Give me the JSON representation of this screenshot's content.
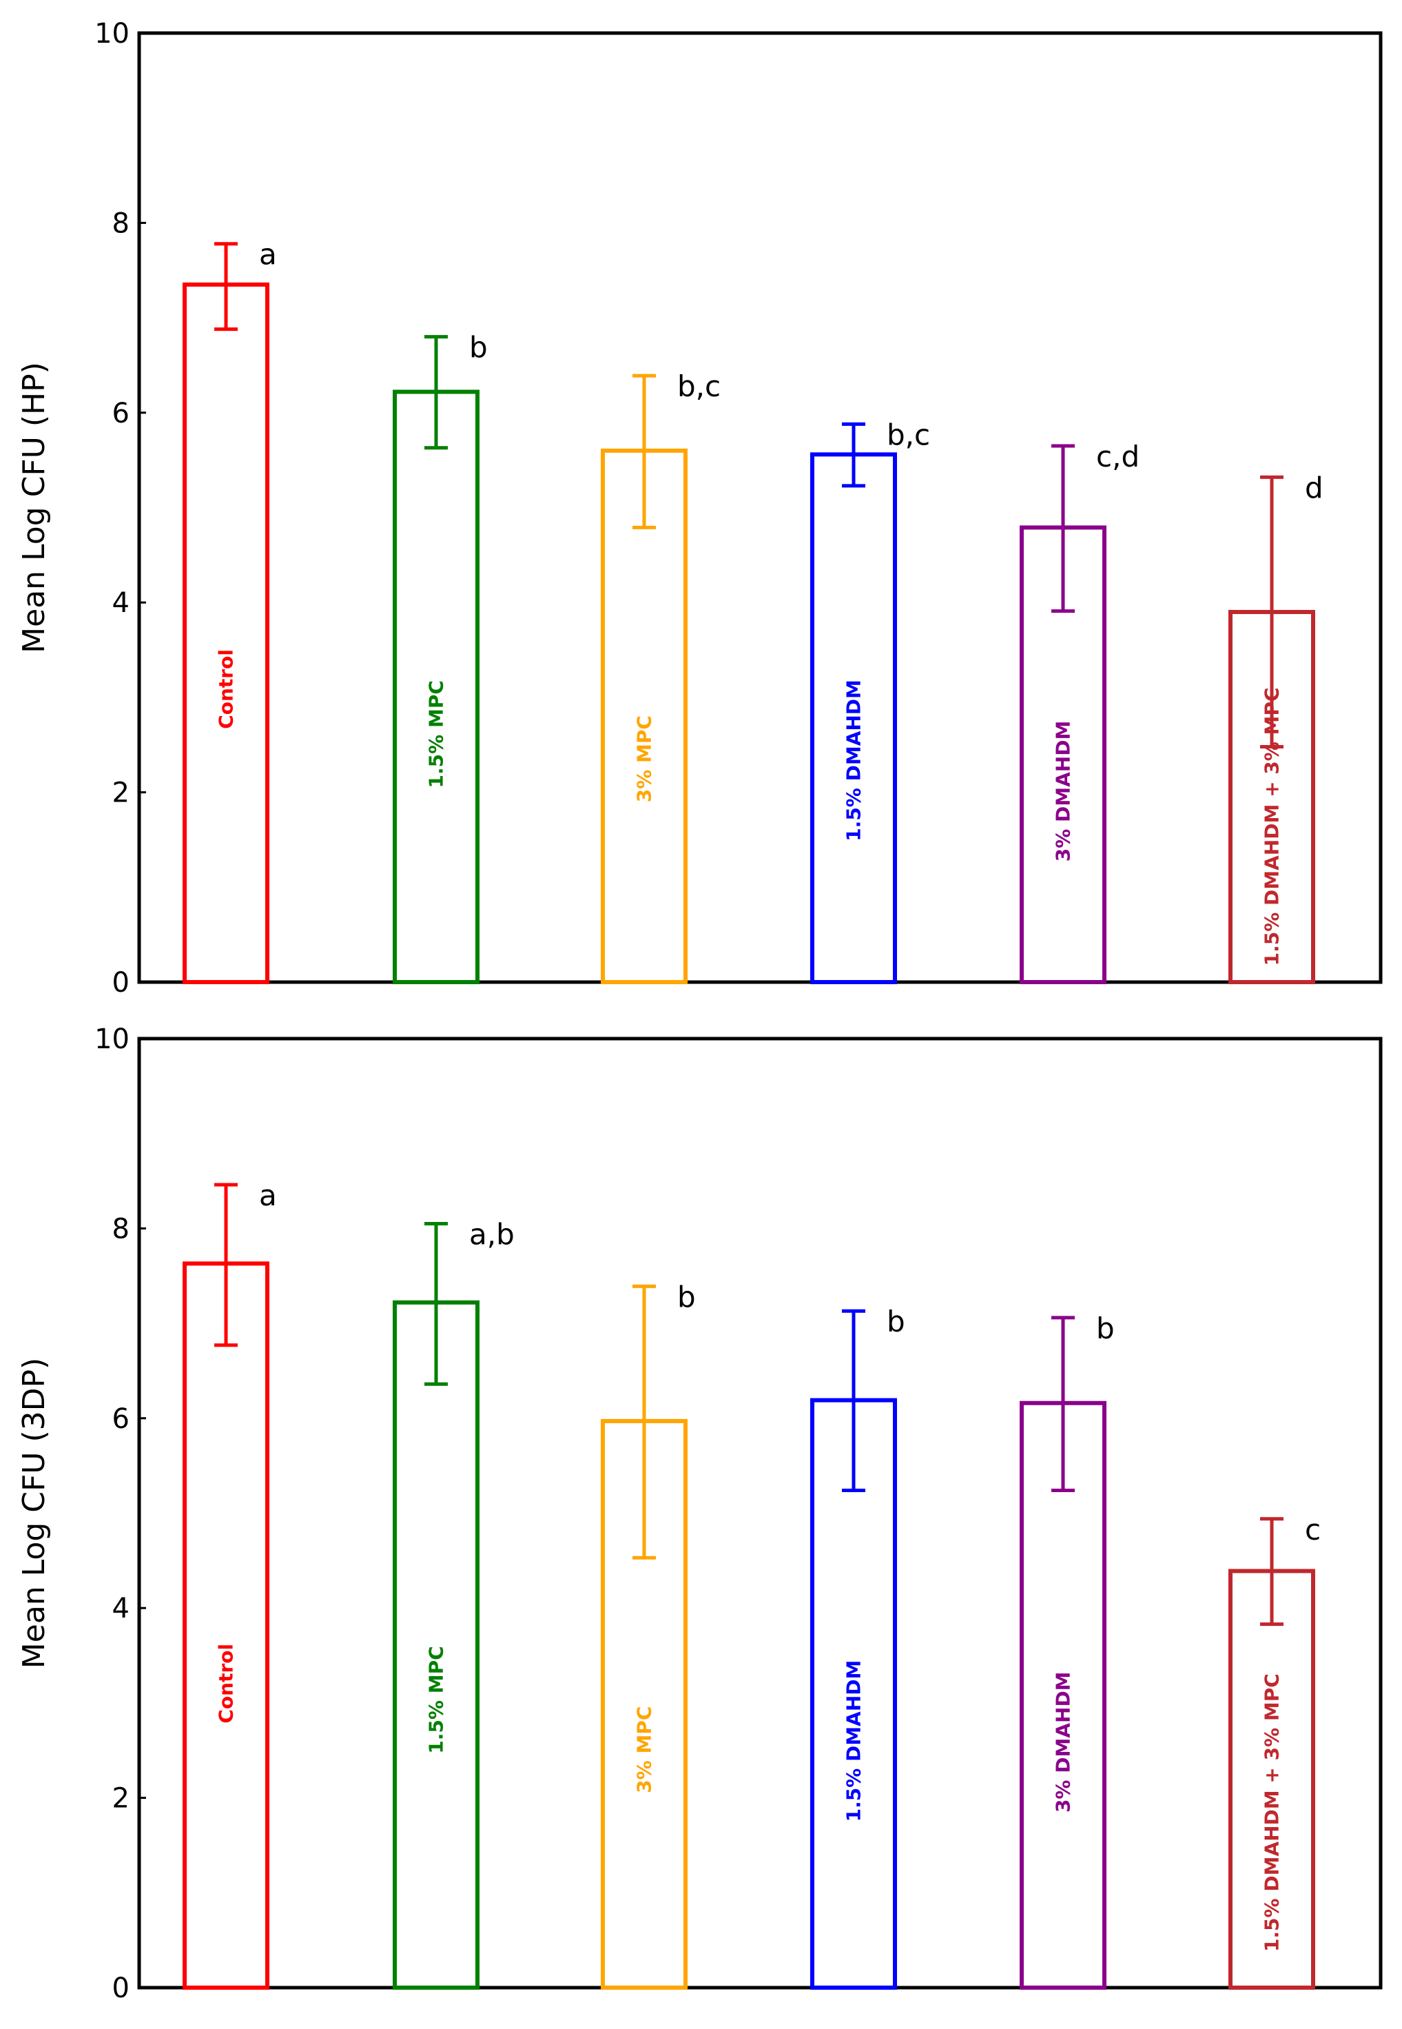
{
  "chart_data": [
    {
      "type": "bar",
      "ylabel": "Mean Log CFU (HP)",
      "xlabel": "",
      "ylim": [
        0,
        10
      ],
      "yticks": [
        "0",
        "2",
        "4",
        "6",
        "8",
        "10"
      ],
      "legend": "none",
      "bars": [
        {
          "label": "Control",
          "value": 7.35,
          "err_low": 6.88,
          "err_high": 7.78,
          "letter": "a",
          "color": "#ff0000"
        },
        {
          "label": "1.5% MPC",
          "value": 6.22,
          "err_low": 5.63,
          "err_high": 6.8,
          "letter": "b",
          "color": "#008000"
        },
        {
          "label": "3% MPC",
          "value": 5.6,
          "err_low": 4.79,
          "err_high": 6.39,
          "letter": "b,c",
          "color": "#ffa500"
        },
        {
          "label": "1.5% DMAHDM",
          "value": 5.56,
          "err_low": 5.23,
          "err_high": 5.88,
          "letter": "b,c",
          "color": "#0000ff"
        },
        {
          "label": "3% DMAHDM",
          "value": 4.79,
          "err_low": 3.91,
          "err_high": 5.65,
          "letter": "c,d",
          "color": "#8b008b"
        },
        {
          "label": "1.5% DMAHDM + 3% MPC",
          "value": 3.9,
          "err_low": 2.48,
          "err_high": 5.32,
          "letter": "d",
          "color": "#c0282d"
        }
      ]
    },
    {
      "type": "bar",
      "ylabel": "Mean Log CFU (3DP)",
      "xlabel": "",
      "ylim": [
        0,
        10
      ],
      "yticks": [
        "0",
        "2",
        "4",
        "6",
        "8",
        "10"
      ],
      "legend": "none",
      "bars": [
        {
          "label": "Control",
          "value": 7.63,
          "err_low": 6.77,
          "err_high": 8.46,
          "letter": "a",
          "color": "#ff0000"
        },
        {
          "label": "1.5% MPC",
          "value": 7.22,
          "err_low": 6.36,
          "err_high": 8.05,
          "letter": "a,b",
          "color": "#008000"
        },
        {
          "label": "3% MPC",
          "value": 5.97,
          "err_low": 4.53,
          "err_high": 7.39,
          "letter": "b",
          "color": "#ffa500"
        },
        {
          "label": "1.5% DMAHDM",
          "value": 6.19,
          "err_low": 5.24,
          "err_high": 7.13,
          "letter": "b",
          "color": "#0000ff"
        },
        {
          "label": "3% DMAHDM",
          "value": 6.16,
          "err_low": 5.24,
          "err_high": 7.06,
          "letter": "b",
          "color": "#8b008b"
        },
        {
          "label": "1.5% DMAHDM + 3% MPC",
          "value": 4.39,
          "err_low": 3.83,
          "err_high": 4.94,
          "letter": "c",
          "color": "#c0282d"
        }
      ]
    }
  ]
}
